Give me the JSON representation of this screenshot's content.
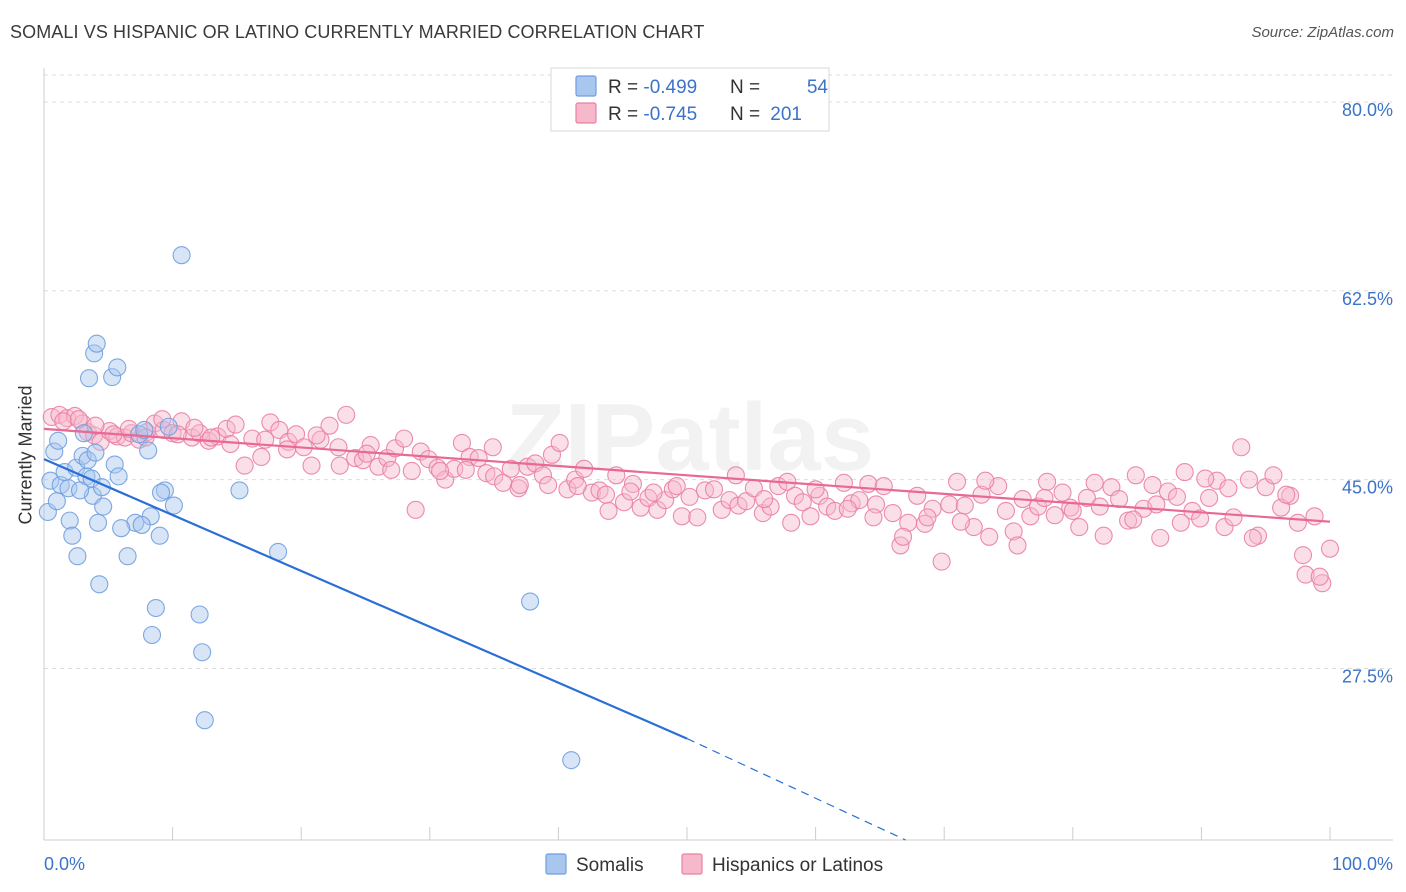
{
  "title": "SOMALI VS HISPANIC OR LATINO CURRENTLY MARRIED CORRELATION CHART",
  "source": "Source: ZipAtlas.com",
  "watermark": "ZIPatlas",
  "colors": {
    "blue": "#6f9ee0",
    "blue_fill": "#a9c6ee",
    "blue_line": "#2a6fd6",
    "pink": "#ea7fa2",
    "pink_fill": "#f6b8cb",
    "pink_line": "#e86896",
    "axis_label": "#3b73c9",
    "grid": "#dddddd"
  },
  "legend": {
    "rows": [
      {
        "r_label": "R = ",
        "r_value": "-0.499",
        "n_label": "N = ",
        "n_value": "54"
      },
      {
        "r_label": "R = ",
        "r_value": "-0.745",
        "n_label": "N = ",
        "n_value": "201"
      }
    ]
  },
  "bottom_legend": [
    "Somalis",
    "Hispanics or Latinos"
  ],
  "chart_data": {
    "type": "scatter",
    "title": "SOMALI VS HISPANIC OR LATINO CURRENTLY MARRIED CORRELATION CHART",
    "xlabel": "",
    "ylabel": "Currently Married",
    "xlim": [
      0,
      100
    ],
    "ylim": [
      11.6,
      82.5
    ],
    "x_tick_labels": [
      "0.0%",
      "100.0%"
    ],
    "y_ticks": [
      27.5,
      45.0,
      62.5,
      80.0
    ],
    "y_tick_labels": [
      "27.5%",
      "45.0%",
      "62.5%",
      "80.0%"
    ],
    "grid": true,
    "series": [
      {
        "name": "Somalis",
        "color": "#6f9ee0",
        "r": -0.499,
        "n": 54,
        "trend": {
          "x0": 0,
          "y0": 46.9,
          "x1": 50,
          "y1": 21.0,
          "dash_to_x": 67,
          "dash_to_y": 11.6
        },
        "points": [
          [
            0.3,
            42.0
          ],
          [
            0.5,
            44.9
          ],
          [
            0.8,
            47.6
          ],
          [
            1.1,
            48.6
          ],
          [
            1.3,
            44.5
          ],
          [
            1.6,
            45.7
          ],
          [
            1.9,
            44.2
          ],
          [
            2.0,
            41.2
          ],
          [
            2.2,
            39.8
          ],
          [
            2.5,
            46.1
          ],
          [
            2.6,
            37.9
          ],
          [
            3.0,
            47.2
          ],
          [
            3.1,
            49.3
          ],
          [
            3.3,
            45.3
          ],
          [
            3.4,
            46.8
          ],
          [
            3.5,
            54.4
          ],
          [
            3.7,
            45.1
          ],
          [
            3.8,
            43.5
          ],
          [
            3.9,
            56.7
          ],
          [
            4.0,
            47.5
          ],
          [
            4.1,
            57.6
          ],
          [
            4.3,
            35.3
          ],
          [
            4.5,
            44.3
          ],
          [
            4.6,
            42.5
          ],
          [
            5.3,
            54.5
          ],
          [
            5.5,
            46.4
          ],
          [
            5.7,
            55.4
          ],
          [
            5.8,
            45.3
          ],
          [
            6.5,
            37.9
          ],
          [
            7.1,
            41.0
          ],
          [
            7.4,
            49.2
          ],
          [
            7.8,
            49.6
          ],
          [
            8.1,
            47.7
          ],
          [
            8.3,
            41.6
          ],
          [
            8.4,
            30.6
          ],
          [
            8.7,
            33.1
          ],
          [
            9.0,
            39.8
          ],
          [
            9.4,
            44.0
          ],
          [
            9.7,
            49.9
          ],
          [
            10.1,
            42.6
          ],
          [
            10.7,
            65.8
          ],
          [
            12.1,
            32.5
          ],
          [
            12.3,
            29.0
          ],
          [
            12.5,
            22.7
          ],
          [
            15.2,
            44.0
          ],
          [
            18.2,
            38.3
          ],
          [
            37.8,
            33.7
          ],
          [
            41.0,
            19.0
          ],
          [
            1.0,
            43.0
          ],
          [
            2.8,
            44.0
          ],
          [
            6.0,
            40.5
          ],
          [
            4.2,
            41.0
          ],
          [
            7.6,
            40.8
          ],
          [
            9.1,
            43.8
          ]
        ]
      },
      {
        "name": "Hispanics or Latinos",
        "color": "#ea7fa2",
        "r": -0.745,
        "n": 201,
        "trend": {
          "x0": 0,
          "y0": 49.7,
          "x1": 100,
          "y1": 41.1
        },
        "points": [
          [
            0.6,
            50.8
          ],
          [
            1.2,
            51.0
          ],
          [
            1.8,
            50.7
          ],
          [
            2.4,
            50.9
          ],
          [
            3.0,
            50.2
          ],
          [
            3.4,
            49.4
          ],
          [
            3.9,
            49.1
          ],
          [
            4.4,
            48.5
          ],
          [
            5.1,
            49.5
          ],
          [
            5.7,
            49.0
          ],
          [
            6.3,
            48.9
          ],
          [
            6.8,
            49.3
          ],
          [
            7.4,
            48.7
          ],
          [
            8.0,
            49.4
          ],
          [
            8.6,
            50.2
          ],
          [
            9.3,
            49.6
          ],
          [
            10.0,
            49.3
          ],
          [
            10.7,
            50.4
          ],
          [
            11.5,
            48.9
          ],
          [
            12.1,
            49.3
          ],
          [
            12.8,
            48.6
          ],
          [
            13.5,
            49.0
          ],
          [
            14.2,
            49.7
          ],
          [
            14.9,
            50.1
          ],
          [
            15.6,
            46.3
          ],
          [
            16.2,
            48.8
          ],
          [
            16.9,
            47.1
          ],
          [
            17.6,
            50.3
          ],
          [
            18.3,
            49.6
          ],
          [
            19.0,
            48.5
          ],
          [
            19.6,
            49.2
          ],
          [
            20.2,
            48.0
          ],
          [
            20.8,
            46.3
          ],
          [
            21.5,
            48.7
          ],
          [
            22.2,
            50.0
          ],
          [
            22.9,
            48.0
          ],
          [
            23.5,
            51.0
          ],
          [
            24.2,
            47.0
          ],
          [
            24.8,
            46.8
          ],
          [
            25.4,
            48.2
          ],
          [
            26.0,
            46.2
          ],
          [
            26.7,
            47.0
          ],
          [
            27.3,
            47.9
          ],
          [
            28.0,
            48.8
          ],
          [
            28.6,
            45.8
          ],
          [
            29.3,
            47.6
          ],
          [
            29.9,
            46.9
          ],
          [
            30.6,
            46.1
          ],
          [
            31.2,
            45.0
          ],
          [
            31.9,
            46.0
          ],
          [
            32.5,
            48.4
          ],
          [
            33.1,
            47.1
          ],
          [
            33.8,
            47.0
          ],
          [
            34.4,
            45.6
          ],
          [
            35.0,
            45.3
          ],
          [
            35.7,
            44.7
          ],
          [
            36.3,
            46.0
          ],
          [
            36.9,
            44.2
          ],
          [
            37.6,
            46.2
          ],
          [
            38.2,
            46.5
          ],
          [
            38.8,
            45.4
          ],
          [
            39.5,
            47.3
          ],
          [
            40.1,
            48.4
          ],
          [
            40.7,
            44.1
          ],
          [
            41.3,
            45.0
          ],
          [
            42.0,
            46.0
          ],
          [
            42.6,
            43.8
          ],
          [
            43.2,
            44.0
          ],
          [
            43.9,
            42.1
          ],
          [
            44.5,
            45.4
          ],
          [
            45.1,
            42.9
          ],
          [
            45.8,
            44.6
          ],
          [
            46.4,
            42.4
          ],
          [
            47.0,
            43.3
          ],
          [
            47.7,
            42.2
          ],
          [
            48.3,
            43.1
          ],
          [
            48.9,
            44.1
          ],
          [
            49.6,
            41.6
          ],
          [
            50.2,
            43.4
          ],
          [
            50.8,
            41.5
          ],
          [
            51.4,
            44.0
          ],
          [
            52.1,
            44.1
          ],
          [
            52.7,
            42.2
          ],
          [
            53.3,
            43.1
          ],
          [
            54.0,
            42.6
          ],
          [
            54.6,
            43.0
          ],
          [
            55.2,
            44.2
          ],
          [
            55.9,
            41.9
          ],
          [
            56.5,
            42.5
          ],
          [
            57.1,
            44.4
          ],
          [
            57.8,
            44.8
          ],
          [
            58.4,
            43.5
          ],
          [
            59.0,
            42.9
          ],
          [
            59.6,
            41.6
          ],
          [
            60.3,
            43.5
          ],
          [
            60.9,
            42.5
          ],
          [
            61.5,
            42.1
          ],
          [
            62.2,
            44.7
          ],
          [
            62.8,
            42.8
          ],
          [
            63.4,
            43.1
          ],
          [
            64.1,
            44.6
          ],
          [
            64.7,
            42.7
          ],
          [
            65.3,
            44.4
          ],
          [
            66.0,
            41.9
          ],
          [
            66.6,
            38.9
          ],
          [
            67.2,
            41.0
          ],
          [
            67.9,
            43.5
          ],
          [
            68.5,
            40.9
          ],
          [
            69.1,
            42.3
          ],
          [
            69.8,
            37.4
          ],
          [
            70.4,
            42.7
          ],
          [
            71.0,
            44.8
          ],
          [
            71.6,
            42.6
          ],
          [
            72.3,
            40.6
          ],
          [
            72.9,
            43.6
          ],
          [
            73.5,
            39.7
          ],
          [
            74.2,
            44.4
          ],
          [
            74.8,
            42.1
          ],
          [
            75.4,
            40.2
          ],
          [
            76.1,
            43.2
          ],
          [
            76.7,
            41.6
          ],
          [
            77.3,
            42.5
          ],
          [
            78.0,
            44.8
          ],
          [
            78.6,
            41.7
          ],
          [
            79.2,
            43.8
          ],
          [
            79.8,
            42.4
          ],
          [
            80.5,
            40.6
          ],
          [
            81.1,
            43.3
          ],
          [
            81.7,
            44.7
          ],
          [
            82.4,
            39.8
          ],
          [
            83.0,
            44.3
          ],
          [
            83.6,
            43.2
          ],
          [
            84.3,
            41.2
          ],
          [
            84.9,
            45.4
          ],
          [
            85.5,
            42.3
          ],
          [
            86.2,
            44.5
          ],
          [
            86.8,
            39.6
          ],
          [
            87.4,
            43.9
          ],
          [
            88.1,
            43.4
          ],
          [
            88.7,
            45.7
          ],
          [
            89.3,
            42.1
          ],
          [
            89.9,
            41.4
          ],
          [
            90.6,
            43.3
          ],
          [
            91.2,
            44.9
          ],
          [
            91.8,
            40.6
          ],
          [
            92.5,
            41.5
          ],
          [
            93.1,
            48.0
          ],
          [
            93.7,
            45.0
          ],
          [
            94.4,
            39.8
          ],
          [
            95.0,
            44.3
          ],
          [
            95.6,
            45.4
          ],
          [
            96.2,
            42.4
          ],
          [
            96.9,
            43.5
          ],
          [
            97.5,
            41.0
          ],
          [
            98.1,
            36.2
          ],
          [
            98.8,
            41.6
          ],
          [
            99.4,
            35.4
          ],
          [
            100.0,
            38.6
          ],
          [
            97.9,
            38.0
          ],
          [
            99.2,
            36.0
          ],
          [
            1.5,
            50.4
          ],
          [
            2.7,
            50.6
          ],
          [
            4.0,
            50.0
          ],
          [
            5.4,
            49.2
          ],
          [
            6.6,
            49.7
          ],
          [
            7.9,
            48.9
          ],
          [
            9.2,
            50.6
          ],
          [
            10.4,
            49.2
          ],
          [
            11.7,
            49.8
          ],
          [
            13.0,
            48.9
          ],
          [
            14.5,
            48.3
          ],
          [
            17.2,
            48.7
          ],
          [
            18.9,
            47.8
          ],
          [
            21.2,
            49.1
          ],
          [
            23.0,
            46.3
          ],
          [
            25.1,
            47.4
          ],
          [
            27.0,
            45.9
          ],
          [
            28.9,
            42.2
          ],
          [
            30.8,
            45.8
          ],
          [
            32.8,
            45.9
          ],
          [
            34.9,
            48.0
          ],
          [
            37.0,
            44.5
          ],
          [
            39.2,
            44.5
          ],
          [
            41.5,
            44.4
          ],
          [
            43.7,
            43.6
          ],
          [
            45.6,
            43.9
          ],
          [
            47.4,
            43.8
          ],
          [
            49.2,
            44.4
          ],
          [
            53.8,
            45.4
          ],
          [
            56.0,
            43.2
          ],
          [
            58.1,
            41.0
          ],
          [
            60.0,
            44.1
          ],
          [
            62.5,
            42.3
          ],
          [
            64.5,
            41.5
          ],
          [
            66.8,
            39.7
          ],
          [
            68.7,
            41.5
          ],
          [
            71.3,
            41.1
          ],
          [
            73.2,
            44.9
          ],
          [
            75.7,
            38.9
          ],
          [
            77.8,
            43.3
          ],
          [
            80.0,
            42.1
          ],
          [
            82.1,
            42.5
          ],
          [
            84.7,
            41.3
          ],
          [
            86.5,
            42.7
          ],
          [
            88.4,
            41.0
          ],
          [
            90.3,
            45.1
          ],
          [
            92.1,
            44.2
          ],
          [
            94.0,
            39.6
          ],
          [
            96.6,
            43.6
          ]
        ]
      }
    ]
  }
}
